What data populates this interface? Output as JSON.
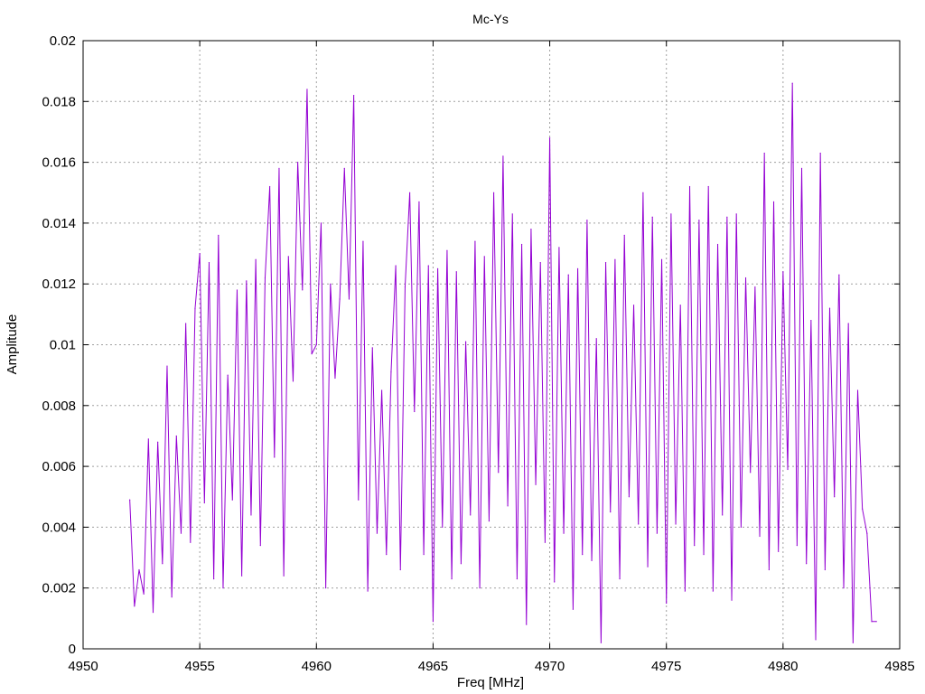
{
  "chart_data": {
    "type": "line",
    "title": "Mc-Ys",
    "xlabel": "Freq [MHz]",
    "ylabel": "Amplitude",
    "xlim": [
      4950,
      4985
    ],
    "ylim": [
      0,
      0.02
    ],
    "x_ticks": [
      4950,
      4955,
      4960,
      4965,
      4970,
      4975,
      4980,
      4985
    ],
    "x_tick_labels": [
      "4950",
      "4955",
      "4960",
      "4965",
      "4970",
      "4975",
      "4980",
      "4985"
    ],
    "y_ticks": [
      0,
      0.002,
      0.004,
      0.006,
      0.008,
      0.01,
      0.012,
      0.014,
      0.016,
      0.018,
      0.02
    ],
    "y_tick_labels": [
      "0",
      "0.002",
      "0.004",
      "0.006",
      "0.008",
      "0.01",
      "0.012",
      "0.014",
      "0.016",
      "0.018",
      "0.02"
    ],
    "grid": true,
    "legend": "none",
    "series": [
      {
        "color": "#9400d3",
        "x": [
          4952.0,
          4952.2,
          4952.4,
          4952.6,
          4952.8,
          4953.0,
          4953.2,
          4953.4,
          4953.6,
          4953.8,
          4954.0,
          4954.2,
          4954.4,
          4954.6,
          4954.8,
          4955.0,
          4955.2,
          4955.4,
          4955.6,
          4955.8,
          4956.0,
          4956.2,
          4956.4,
          4956.6,
          4956.8,
          4957.0,
          4957.2,
          4957.4,
          4957.6,
          4957.8,
          4958.0,
          4958.2,
          4958.4,
          4958.6,
          4958.8,
          4959.0,
          4959.2,
          4959.4,
          4959.6,
          4959.8,
          4960.0,
          4960.2,
          4960.4,
          4960.6,
          4960.8,
          4961.0,
          4961.2,
          4961.4,
          4961.6,
          4961.8,
          4962.0,
          4962.2,
          4962.4,
          4962.6,
          4962.8,
          4963.0,
          4963.2,
          4963.4,
          4963.6,
          4963.8,
          4964.0,
          4964.2,
          4964.4,
          4964.6,
          4964.8,
          4965.0,
          4965.2,
          4965.4,
          4965.6,
          4965.8,
          4966.0,
          4966.2,
          4966.4,
          4966.6,
          4966.8,
          4967.0,
          4967.2,
          4967.4,
          4967.6,
          4967.8,
          4968.0,
          4968.2,
          4968.4,
          4968.6,
          4968.8,
          4969.0,
          4969.2,
          4969.4,
          4969.6,
          4969.8,
          4970.0,
          4970.2,
          4970.4,
          4970.6,
          4970.8,
          4971.0,
          4971.2,
          4971.4,
          4971.6,
          4971.8,
          4972.0,
          4972.2,
          4972.4,
          4972.6,
          4972.8,
          4973.0,
          4973.2,
          4973.4,
          4973.6,
          4973.8,
          4974.0,
          4974.2,
          4974.4,
          4974.6,
          4974.8,
          4975.0,
          4975.2,
          4975.4,
          4975.6,
          4975.8,
          4976.0,
          4976.2,
          4976.4,
          4976.6,
          4976.8,
          4977.0,
          4977.2,
          4977.4,
          4977.6,
          4977.8,
          4978.0,
          4978.2,
          4978.4,
          4978.6,
          4978.8,
          4979.0,
          4979.2,
          4979.4,
          4979.6,
          4979.8,
          4980.0,
          4980.2,
          4980.4,
          4980.6,
          4980.8,
          4981.0,
          4981.2,
          4981.4,
          4981.6,
          4981.8,
          4982.0,
          4982.2,
          4982.4,
          4982.6,
          4982.8,
          4983.0,
          4983.2,
          4983.4,
          4983.6,
          4983.8,
          4984.0
        ],
        "y": [
          0.0049,
          0.0014,
          0.0026,
          0.0018,
          0.0069,
          0.0012,
          0.0068,
          0.0028,
          0.0093,
          0.0017,
          0.007,
          0.0038,
          0.0107,
          0.0035,
          0.0112,
          0.013,
          0.0048,
          0.0127,
          0.0023,
          0.0136,
          0.002,
          0.009,
          0.0049,
          0.0118,
          0.0024,
          0.0121,
          0.0044,
          0.0128,
          0.0034,
          0.0122,
          0.0152,
          0.0063,
          0.0158,
          0.0024,
          0.0129,
          0.0088,
          0.016,
          0.0118,
          0.0184,
          0.0097,
          0.01,
          0.014,
          0.002,
          0.012,
          0.0089,
          0.0115,
          0.0158,
          0.0115,
          0.0182,
          0.0049,
          0.0134,
          0.0019,
          0.0099,
          0.0038,
          0.0085,
          0.0031,
          0.0091,
          0.0126,
          0.0026,
          0.0119,
          0.015,
          0.0078,
          0.0147,
          0.0031,
          0.0126,
          0.0009,
          0.0125,
          0.004,
          0.0131,
          0.0023,
          0.0124,
          0.0028,
          0.0101,
          0.0044,
          0.0134,
          0.002,
          0.0129,
          0.0042,
          0.015,
          0.0058,
          0.0162,
          0.0047,
          0.0143,
          0.0023,
          0.0133,
          0.0008,
          0.0138,
          0.0054,
          0.0127,
          0.0035,
          0.0168,
          0.0022,
          0.0132,
          0.0038,
          0.0123,
          0.0013,
          0.0125,
          0.0031,
          0.0141,
          0.0029,
          0.0102,
          0.0002,
          0.0127,
          0.0045,
          0.0128,
          0.0023,
          0.0136,
          0.005,
          0.0113,
          0.0041,
          0.015,
          0.0027,
          0.0142,
          0.0038,
          0.0128,
          0.0015,
          0.0143,
          0.0041,
          0.0113,
          0.0019,
          0.0152,
          0.0034,
          0.0141,
          0.0031,
          0.0152,
          0.0019,
          0.0133,
          0.0044,
          0.0142,
          0.0016,
          0.0143,
          0.004,
          0.0122,
          0.0058,
          0.0119,
          0.0037,
          0.0163,
          0.0026,
          0.0147,
          0.0032,
          0.0124,
          0.0059,
          0.0186,
          0.0034,
          0.0158,
          0.0028,
          0.0108,
          0.0003,
          0.0163,
          0.0026,
          0.0112,
          0.005,
          0.0123,
          0.002,
          0.0107,
          0.0002,
          0.0085,
          0.0046,
          0.0038,
          0.0009,
          0.0009
        ]
      }
    ]
  }
}
